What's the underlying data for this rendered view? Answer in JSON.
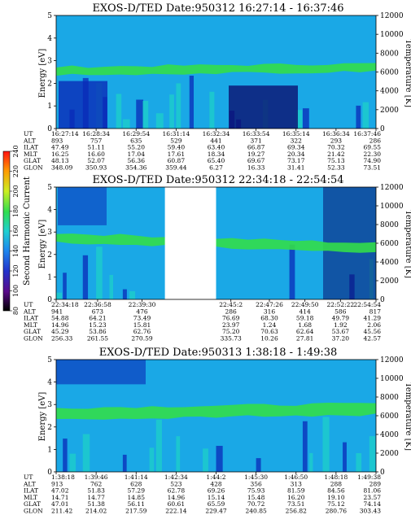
{
  "colors": {
    "background": "#1aa8e6",
    "band": "#33dd4a",
    "dark": "#0a2ab8",
    "darkest": "#0b1070",
    "mid": "#1dd0c8",
    "gap": "#ffffff"
  },
  "colorbar": {
    "label": "Second Harmonic Current",
    "ticks": [
      "80",
      "100",
      "120",
      "140",
      "160",
      "180",
      "200",
      "220",
      "240"
    ],
    "colors": [
      "#000000",
      "#5a0a8a",
      "#2233cc",
      "#1e88ee",
      "#20d0d0",
      "#30dd50",
      "#ccee22",
      "#ff9900",
      "#ff1111"
    ]
  },
  "chart_data": [
    {
      "type": "heatmap",
      "title": "EXOS-D/TED   Date:950312   16:27:14 - 16:37:46",
      "ylabel": "Energy [eV]",
      "y2label": "Temperature [K]",
      "ylim": [
        0,
        5
      ],
      "y2lim": [
        0,
        12000
      ],
      "yticks": [
        "0",
        "1",
        "2",
        "3",
        "4",
        "5"
      ],
      "y2ticks": [
        "0",
        "2000",
        "4000",
        "6000",
        "8000",
        "10000",
        "12000"
      ],
      "band": {
        "start": 2.55,
        "end": 2.7,
        "width": 0.35
      },
      "orbit_table": {
        "rows": [
          "UT",
          "ALT",
          "ILAT",
          "MLT",
          "GLAT",
          "GLON"
        ],
        "columns": [
          [
            "16:27:14",
            "893",
            "47.49",
            "16.25",
            "48.13",
            "348.09"
          ],
          [
            "16:28:34",
            "757",
            "51.11",
            "16.60",
            "52.07",
            "350.93"
          ],
          [
            "16:29:54",
            "635",
            "55.20",
            "17.04",
            "56.36",
            "354.36"
          ],
          [
            "16:31:14",
            "529",
            "59.40",
            "17.61",
            "60.87",
            "359.44"
          ],
          [
            "16:32:34",
            "441",
            "63.40",
            "18.34",
            "65.40",
            "6.27"
          ],
          [
            "16:33:54",
            "371",
            "66.87",
            "19.27",
            "69.67",
            "16.33"
          ],
          [
            "16:35:14",
            "322",
            "69.34",
            "20.34",
            "73.17",
            "31.41"
          ],
          [
            "16:36:34",
            "293",
            "70.32",
            "21.42",
            "75.13",
            "52.33"
          ],
          [
            "16:37:46",
            "286",
            "69.55",
            "22.30",
            "74.90",
            "73.51"
          ]
        ]
      }
    },
    {
      "type": "heatmap",
      "title": "EXOS-D/TED   Date:950312   22:34:18 - 22:54:54",
      "ylabel": "Energy [eV]",
      "y2label": "Temperature [K]",
      "ylim": [
        0,
        5
      ],
      "y2lim": [
        0,
        12000
      ],
      "yticks": [
        "0",
        "1",
        "2",
        "3",
        "4",
        "5"
      ],
      "y2ticks": [
        "0",
        "2000",
        "4000",
        "6000",
        "8000",
        "10000",
        "12000"
      ],
      "band": {
        "start": 2.75,
        "end": 2.3,
        "width": 0.4
      },
      "gap": [
        0.34,
        0.5
      ],
      "orbit_table": {
        "rows": [
          "UT",
          "ALT",
          "ILAT",
          "MLT",
          "GLAT",
          "GLON"
        ],
        "columns": [
          [
            "22:34:18",
            "941",
            "54.88",
            "14.96",
            "45.29",
            "256.33"
          ],
          [
            "22:36:58",
            "673",
            "64.21",
            "15.23",
            "53.86",
            "261.55"
          ],
          [
            "22:39:30",
            "476",
            "73.49",
            "15.81",
            "62.76",
            "270.59"
          ],
          [
            "22:45:2",
            "286",
            "76.69",
            "23.97",
            "75.20",
            "335.73"
          ],
          [
            "22:47:26",
            "316",
            "68.30",
            "1.24",
            "70.63",
            "10.26"
          ],
          [
            "22:49:50",
            "414",
            "59.18",
            "1.68",
            "62.64",
            "27.81"
          ],
          [
            "22:52:22",
            "586",
            "49.79",
            "1.92",
            "53.67",
            "37.20"
          ],
          [
            "22:54:54",
            "817",
            "41.29",
            "2.06",
            "45.56",
            "42.57"
          ]
        ]
      }
    },
    {
      "type": "heatmap",
      "title": "EXOS-D/TED   Date:950313   1:38:18 - 1:49:38",
      "ylabel": "Energy [eV]",
      "y2label": "Temperature [K]",
      "ylim": [
        0,
        5
      ],
      "y2lim": [
        0,
        12000
      ],
      "yticks": [
        "0",
        "1",
        "2",
        "3",
        "4",
        "5"
      ],
      "y2ticks": [
        "0",
        "2000",
        "4000",
        "6000",
        "8000",
        "10000",
        "12000"
      ],
      "band": {
        "start": 2.6,
        "end": 2.8,
        "width": 0.5
      },
      "orbit_table": {
        "rows": [
          "UT",
          "ALT",
          "ILAT",
          "MLT",
          "GLAT",
          "GLON"
        ],
        "columns": [
          [
            "1:38:18",
            "913",
            "47.02",
            "14.71",
            "47.01",
            "211.42"
          ],
          [
            "1:39:46",
            "762",
            "51.83",
            "14.77",
            "51.38",
            "214.02"
          ],
          [
            "1:41:14",
            "628",
            "57.29",
            "14.85",
            "56.11",
            "217.59"
          ],
          [
            "1:42:34",
            "523",
            "62.78",
            "14.96",
            "60.61",
            "222.14"
          ],
          [
            "1:44:2",
            "428",
            "69.26",
            "15.14",
            "65.59",
            "229.47"
          ],
          [
            "1:45:30",
            "356",
            "75.93",
            "15.48",
            "70.72",
            "240.85"
          ],
          [
            "1:46:50",
            "313",
            "81.59",
            "16.20",
            "73.51",
            "256.82"
          ],
          [
            "1:48:18",
            "288",
            "84.56",
            "19.10",
            "75.12",
            "280.76"
          ],
          [
            "1:49:38",
            "289",
            "81.06",
            "23.57",
            "74.14",
            "303.43"
          ]
        ]
      }
    }
  ]
}
